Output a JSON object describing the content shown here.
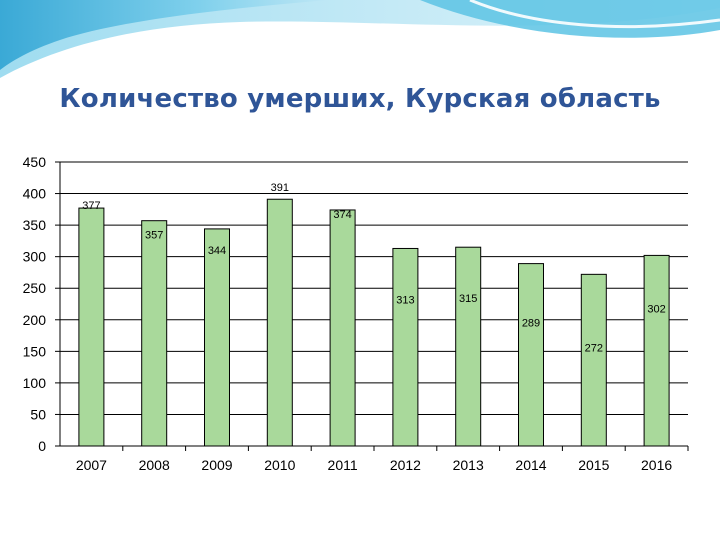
{
  "colors": {
    "bar_fill": "#a9d99b",
    "bar_stroke": "#000000",
    "gridline": "#000000",
    "title": "#2f5597",
    "banner_dark": "#4fb8dc",
    "banner_light": "#c9eaf6"
  },
  "chart_data": {
    "type": "bar",
    "title": "Количество умерших, Курская область",
    "xlabel": "",
    "ylabel": "",
    "categories": [
      "2007",
      "2008",
      "2009",
      "2010",
      "2011",
      "2012",
      "2013",
      "2014",
      "2015",
      "2016"
    ],
    "values": [
      377,
      357,
      344,
      391,
      374,
      313,
      315,
      289,
      272,
      302
    ],
    "data_labels": [
      "377",
      "357",
      "344",
      "391",
      "374",
      "313",
      "315",
      "289",
      "272",
      "302"
    ],
    "ylim": [
      0,
      450
    ],
    "yticks": [
      0,
      50,
      100,
      150,
      200,
      250,
      300,
      350,
      400,
      450
    ],
    "ytick_labels": [
      "0",
      "50",
      "100",
      "150",
      "200",
      "250",
      "300",
      "350",
      "400",
      "450"
    ],
    "grid": true,
    "legend": "none"
  }
}
